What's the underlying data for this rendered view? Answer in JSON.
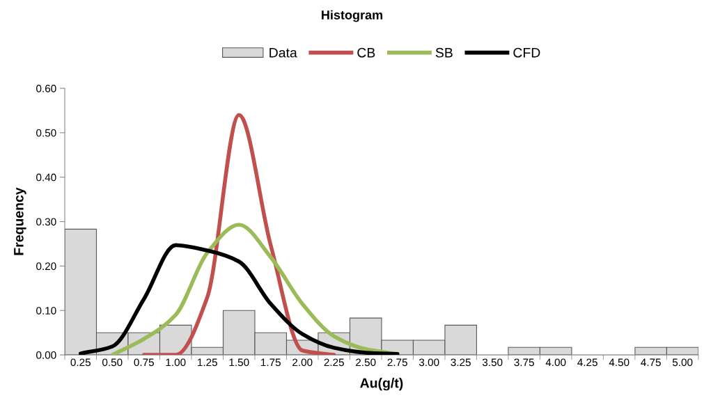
{
  "chart_data": {
    "type": "bar",
    "title": "Histogram",
    "xlabel": "Au(g/t)",
    "ylabel": "Frequency",
    "categories": [
      "0.25",
      "0.50",
      "0.75",
      "1.00",
      "1.25",
      "1.50",
      "1.75",
      "2.00",
      "2.25",
      "2.50",
      "2.75",
      "3.00",
      "3.25",
      "3.50",
      "3.75",
      "4.00",
      "4.25",
      "4.50",
      "4.75",
      "5.00"
    ],
    "series": [
      {
        "name": "Data",
        "type": "bar",
        "color": "#d9d9d9",
        "values": [
          0.283,
          0.05,
          0.05,
          0.067,
          0.017,
          0.1,
          0.05,
          0.033,
          0.05,
          0.083,
          0.033,
          0.033,
          0.067,
          0,
          0.017,
          0.017,
          0,
          0,
          0.017,
          0.017
        ]
      },
      {
        "name": "CB",
        "type": "line",
        "color": "#c0504d",
        "values": [
          null,
          null,
          0.0,
          0.0,
          0.13,
          0.54,
          0.247,
          0.01,
          0.0,
          null,
          null,
          null,
          null,
          null,
          null,
          null,
          null,
          null,
          null,
          null
        ]
      },
      {
        "name": "SB",
        "type": "line",
        "color": "#9bbb59",
        "values": [
          null,
          0.0,
          0.036,
          0.09,
          0.23,
          0.293,
          0.22,
          0.115,
          0.042,
          0.013,
          0.002,
          null,
          null,
          null,
          null,
          null,
          null,
          null,
          null,
          null
        ]
      },
      {
        "name": "CFD",
        "type": "line",
        "color": "#000000",
        "values": [
          0.003,
          0.019,
          0.126,
          0.247,
          0.235,
          0.21,
          0.115,
          0.047,
          0.016,
          0.005,
          0.002,
          null,
          null,
          null,
          null,
          null,
          null,
          null,
          null,
          null
        ]
      }
    ],
    "ylim": [
      0,
      0.6
    ],
    "yticks": [
      {
        "value": 0,
        "label": "0.00"
      },
      {
        "value": 0.1,
        "label": "0.10"
      },
      {
        "value": 0.2,
        "label": "0.20"
      },
      {
        "value": 0.3,
        "label": "0.30"
      },
      {
        "value": 0.4,
        "label": "0.40"
      },
      {
        "value": 0.5,
        "label": "0.50"
      },
      {
        "value": 0.6,
        "label": "0.60"
      }
    ],
    "grid": false,
    "legend": "top",
    "marker": "none"
  }
}
